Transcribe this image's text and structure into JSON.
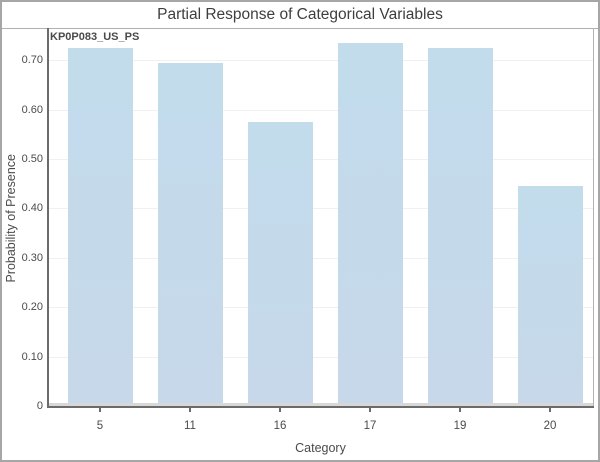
{
  "window": {
    "border_color": "#a6a6a6",
    "background": "#ffffff"
  },
  "chart_data": {
    "type": "bar",
    "title": "Partial Response of Categorical Variables",
    "panel_label": "KP0P083_US_PS",
    "categories": [
      "5",
      "11",
      "16",
      "17",
      "19",
      "20"
    ],
    "values": [
      0.725,
      0.695,
      0.575,
      0.735,
      0.725,
      0.445
    ],
    "xlabel": "Category",
    "ylabel": "Probability of Presence",
    "ylim": [
      0,
      0.765
    ],
    "yticks": [
      0,
      0.1,
      0.2,
      0.3,
      0.4,
      0.5,
      0.6,
      0.7
    ],
    "ytick_labels": [
      "0",
      "0.10",
      "0.20",
      "0.30",
      "0.40",
      "0.50",
      "0.60",
      "0.70"
    ],
    "grid": "horizontal",
    "legend": "none",
    "bar_color_top": "#c2dcec",
    "bar_color_bottom": "#c6d8ea",
    "baseline_strip_color": "#d8d8d8",
    "axis_color": "#6b6b6b",
    "gridline_color": "#f0f0f0",
    "text_color": "#4b4b4b"
  }
}
